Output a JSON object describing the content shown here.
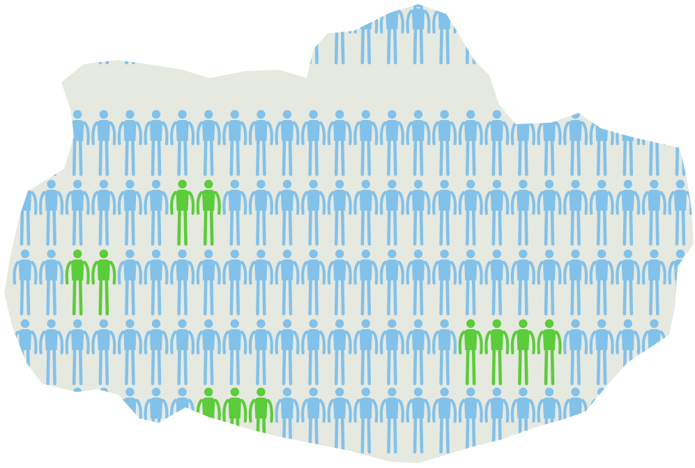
{
  "colors": {
    "background": "#ffffff",
    "land": "#e6e9e0",
    "person_default": "#82c1ea",
    "person_highlight": "#5bcc3a"
  },
  "icons": {
    "region": "map-silhouette-icon",
    "person": "person-icon"
  },
  "grid": {
    "rows": 6,
    "highlighted": [
      [
        2,
        6
      ],
      [
        2,
        7
      ],
      [
        3,
        2
      ],
      [
        3,
        3
      ],
      [
        4,
        17
      ],
      [
        4,
        18
      ],
      [
        4,
        19
      ],
      [
        4,
        20
      ],
      [
        5,
        7
      ],
      [
        5,
        8
      ],
      [
        5,
        9
      ]
    ]
  }
}
